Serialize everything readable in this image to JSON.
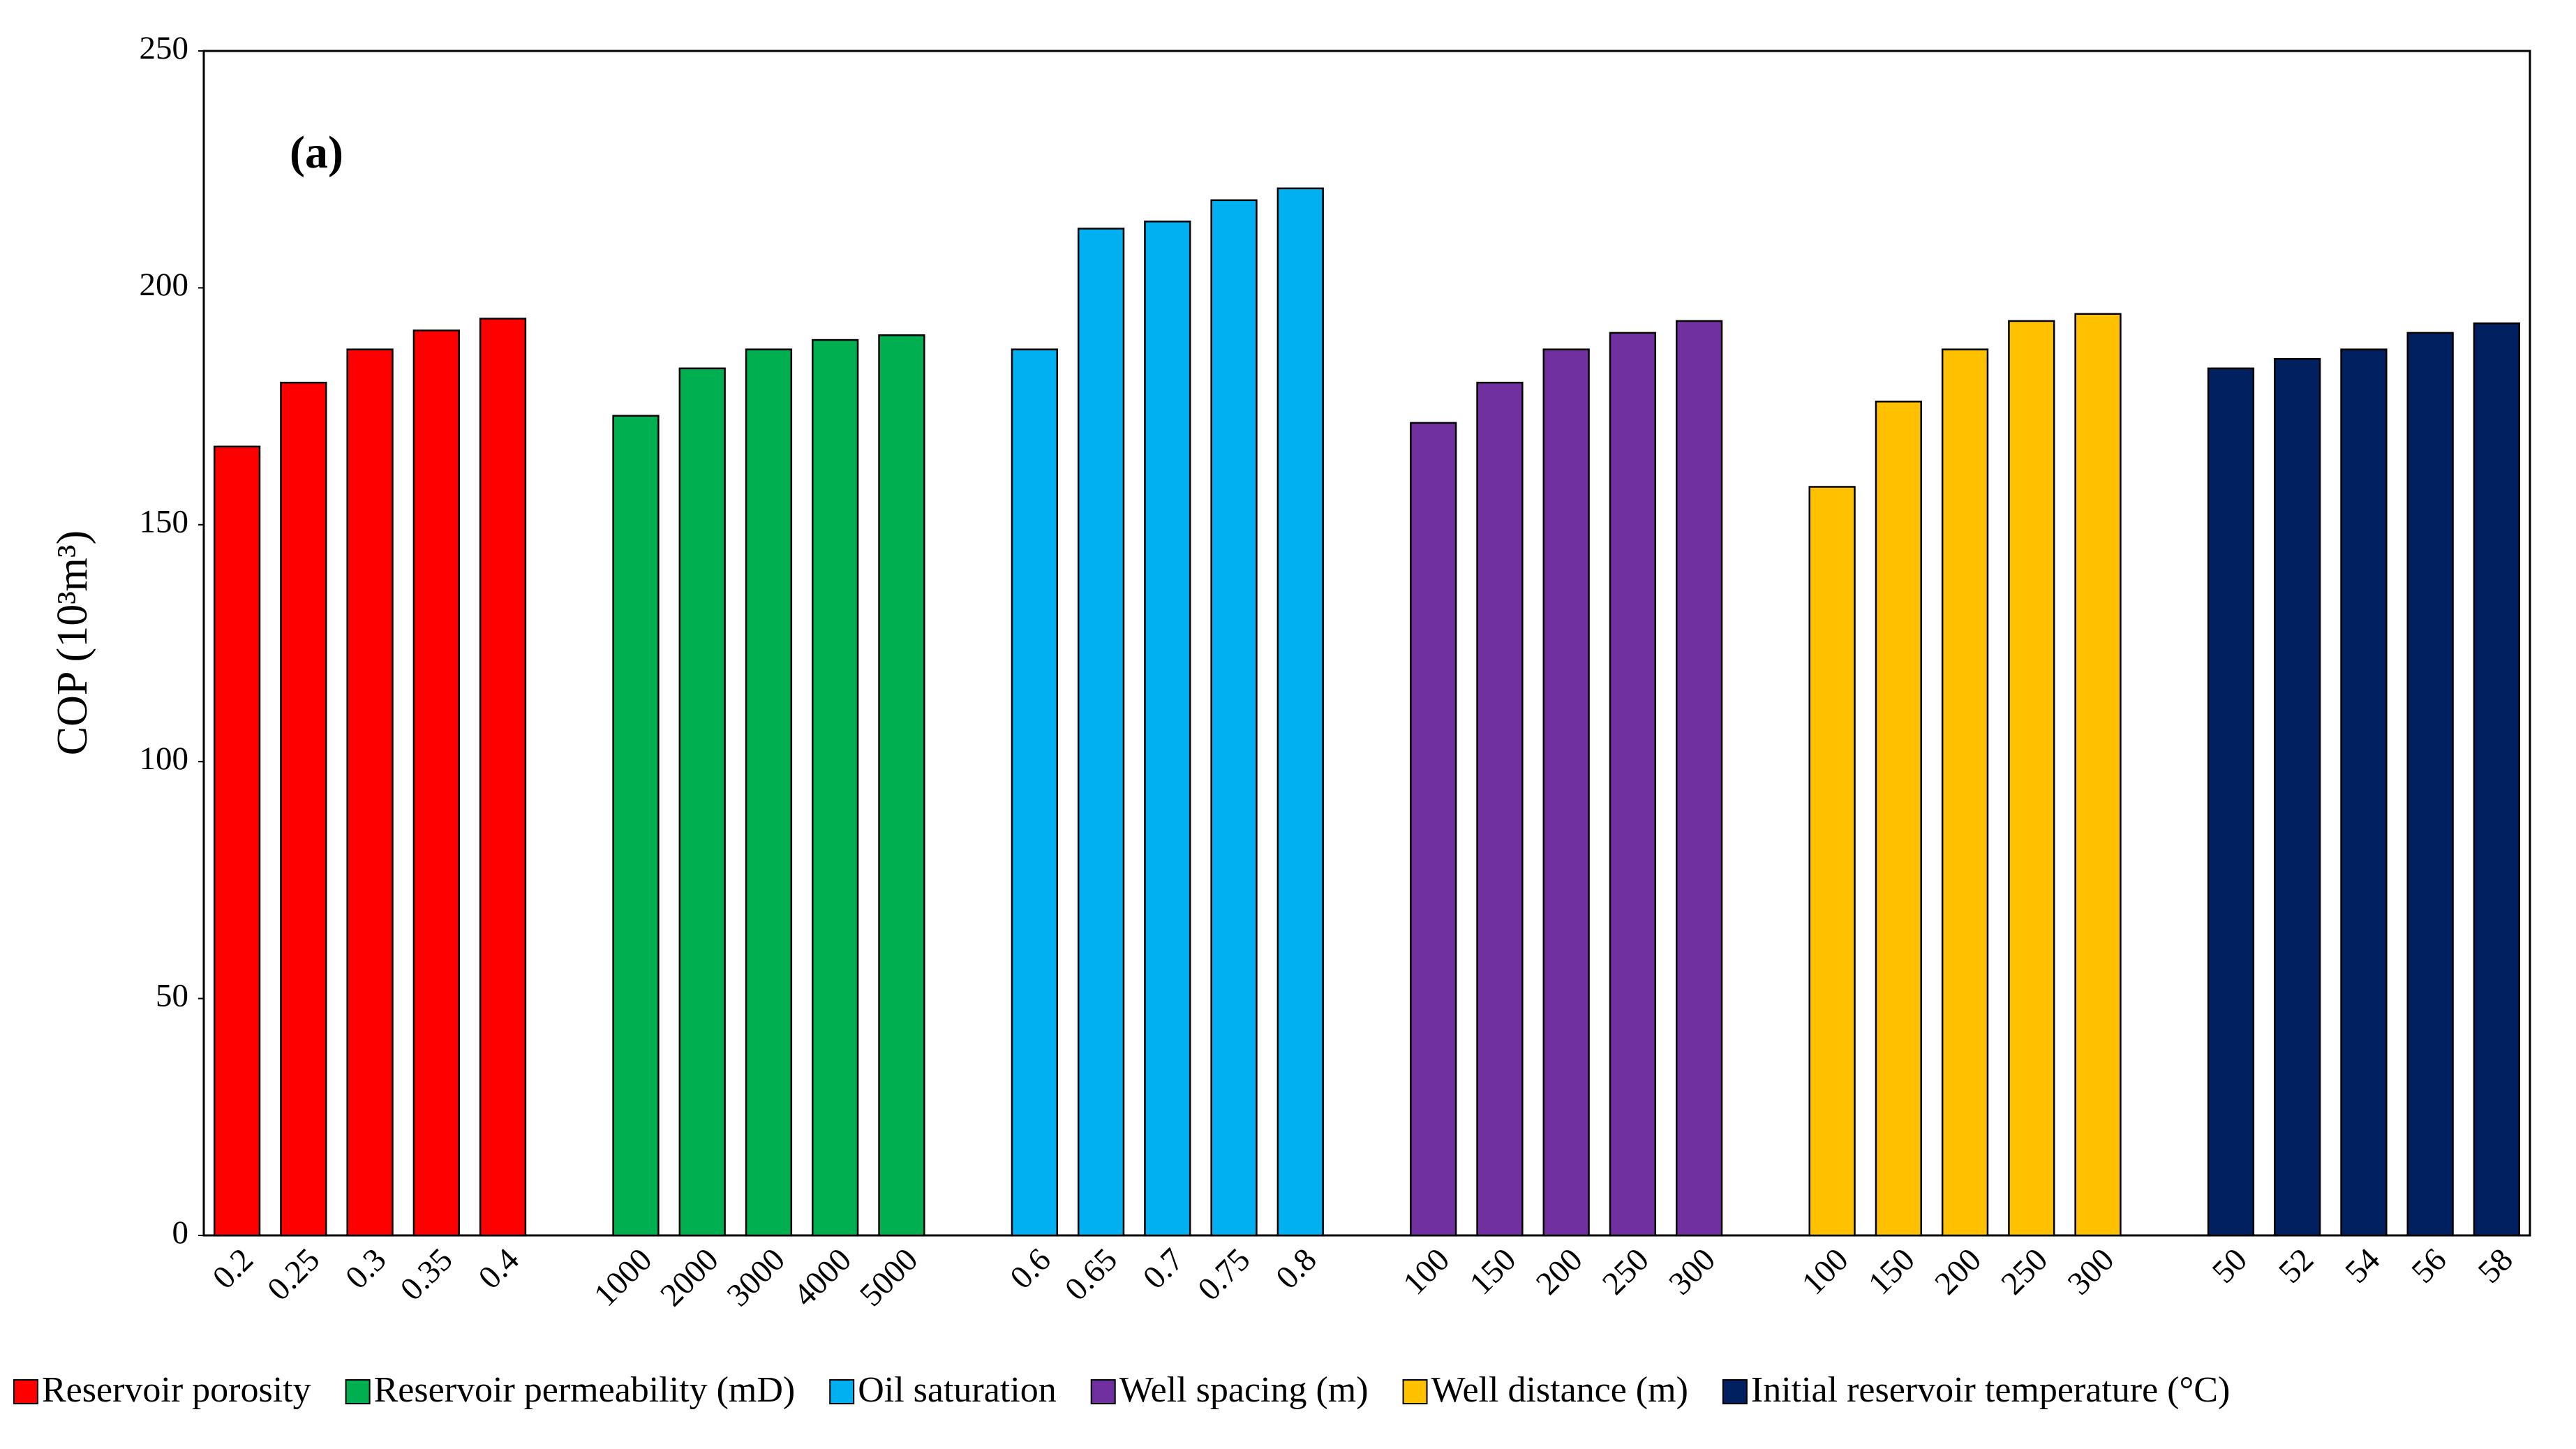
{
  "chart_data": {
    "type": "grouped-bar",
    "annotation": "(a)",
    "y_label": "COP (10³m³)",
    "ylim": [
      0,
      250
    ],
    "yticks": [
      0,
      50,
      100,
      150,
      200,
      250
    ],
    "series": [
      {
        "name": "Reservoir porosity",
        "color": "#ff0000",
        "categories": [
          "0.2",
          "0.25",
          "0.3",
          "0.35",
          "0.4"
        ],
        "values": [
          166.5,
          180,
          187,
          191,
          193.5
        ]
      },
      {
        "name": "Reservoir permeability (mD)",
        "color": "#00b050",
        "categories": [
          "1000",
          "2000",
          "3000",
          "4000",
          "5000"
        ],
        "values": [
          173,
          183,
          187,
          189,
          190
        ]
      },
      {
        "name": "Oil saturation",
        "color": "#00b0f0",
        "categories": [
          "0.6",
          "0.65",
          "0.7",
          "0.75",
          "0.8"
        ],
        "values": [
          187,
          212.5,
          214,
          218.5,
          221
        ]
      },
      {
        "name": "Well spacing (m)",
        "color": "#7030a0",
        "categories": [
          "100",
          "150",
          "200",
          "250",
          "300"
        ],
        "values": [
          171.5,
          180,
          187,
          190.5,
          193
        ]
      },
      {
        "name": "Well distance (m)",
        "color": "#ffc000",
        "categories": [
          "100",
          "150",
          "200",
          "250",
          "300"
        ],
        "values": [
          158,
          176,
          187,
          193,
          194.5
        ]
      },
      {
        "name": "Initial reservoir temperature (°C)",
        "color": "#002060",
        "categories": [
          "50",
          "52",
          "54",
          "56",
          "58"
        ],
        "values": [
          183,
          185,
          187,
          190.5,
          192.5
        ]
      }
    ]
  }
}
